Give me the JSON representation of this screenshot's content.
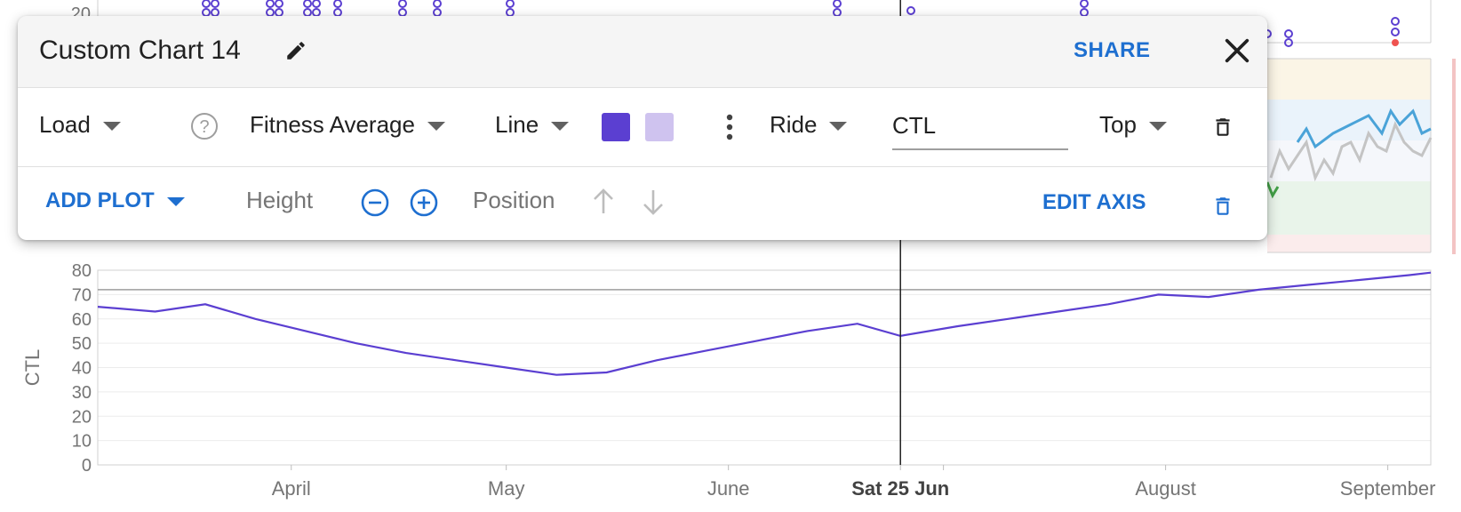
{
  "panel": {
    "title": "Custom Chart 14",
    "share_label": "SHARE",
    "plot": {
      "type_label": "Load",
      "measure_label": "Fitness Average",
      "chart_type_label": "Line",
      "primary_color": "#5b3fd1",
      "secondary_color": "#cfc3ef",
      "sport_label": "Ride",
      "name_value": "CTL",
      "axis_position_label": "Top"
    },
    "footer": {
      "add_plot_label": "ADD PLOT",
      "height_label": "Height",
      "position_label": "Position",
      "edit_axis_label": "EDIT AXIS"
    }
  },
  "background_chart": {
    "top_partial_tick": "20",
    "cursor_date": "Sat 25 Jun"
  },
  "chart_data": {
    "type": "line",
    "ylabel": "CTL",
    "ylim": [
      0,
      80
    ],
    "y_ticks": [
      "0",
      "10",
      "20",
      "30",
      "40",
      "50",
      "60",
      "70",
      "80"
    ],
    "x_tick_labels": [
      "April",
      "May",
      "June",
      "Sat 25 Jun",
      "August",
      "September"
    ],
    "reference_line": 72,
    "series": [
      {
        "color": "#5b3fd1",
        "x": [
          "2022-03-05",
          "2022-03-13",
          "2022-03-20",
          "2022-03-27",
          "2022-04-03",
          "2022-04-10",
          "2022-04-17",
          "2022-04-24",
          "2022-05-01",
          "2022-05-08",
          "2022-05-15",
          "2022-05-22",
          "2022-05-29",
          "2022-06-05",
          "2022-06-12",
          "2022-06-19",
          "2022-06-25",
          "2022-07-03",
          "2022-07-10",
          "2022-07-17",
          "2022-07-24",
          "2022-07-31",
          "2022-08-07",
          "2022-08-14",
          "2022-08-21",
          "2022-08-28",
          "2022-09-04",
          "2022-09-07"
        ],
        "values": [
          65,
          63,
          66,
          60,
          55,
          50,
          46,
          43,
          40,
          37,
          38,
          43,
          47,
          51,
          55,
          58,
          53,
          57,
          60,
          63,
          66,
          70,
          69,
          72,
          74,
          76,
          78,
          79
        ]
      }
    ]
  }
}
